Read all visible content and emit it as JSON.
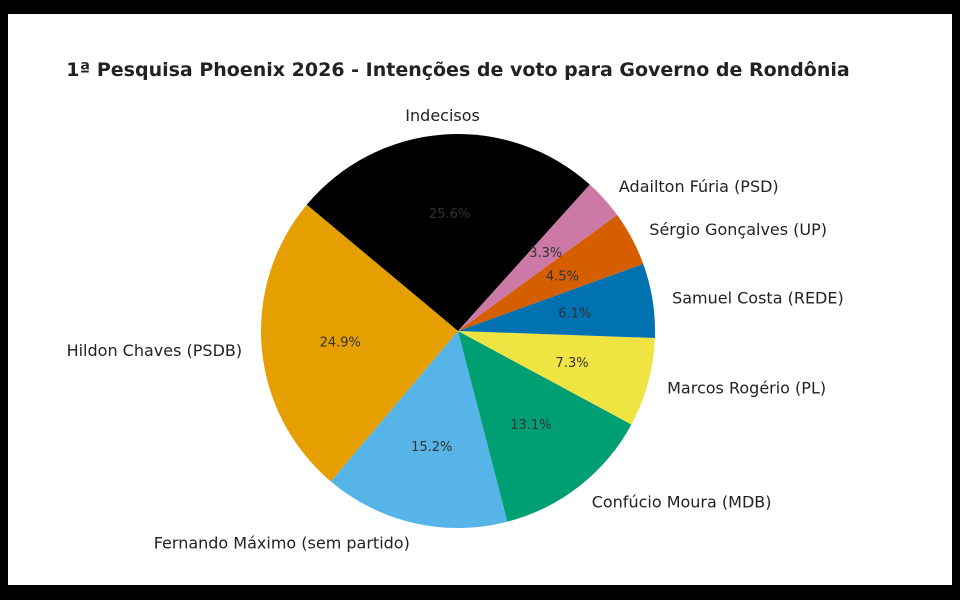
{
  "chart_data": {
    "type": "pie",
    "title": "1ª Pesquisa Phoenix 2026 - Intenções de voto para Governo de Rondônia",
    "start_angle_deg": 48,
    "direction": "counterclockwise",
    "slices": [
      {
        "label": "Indecisos",
        "value": 25.6,
        "pct_label": "25.6%",
        "color": "#000000"
      },
      {
        "label": "Hildon Chaves (PSDB)",
        "value": 24.9,
        "pct_label": "24.9%",
        "color": "#E69F00"
      },
      {
        "label": "Fernando Máximo (sem partido)",
        "value": 15.2,
        "pct_label": "15.2%",
        "color": "#56B4E9"
      },
      {
        "label": "Confúcio Moura (MDB)",
        "value": 13.1,
        "pct_label": "13.1%",
        "color": "#009E73"
      },
      {
        "label": "Marcos Rogério (PL)",
        "value": 7.3,
        "pct_label": "7.3%",
        "color": "#F0E442"
      },
      {
        "label": "Samuel Costa (REDE)",
        "value": 6.1,
        "pct_label": "6.1%",
        "color": "#0072B2"
      },
      {
        "label": "Sérgio Gonçalves (UP)",
        "value": 4.5,
        "pct_label": "4.5%",
        "color": "#D55E00"
      },
      {
        "label": "Adailton Fúria (PSD)",
        "value": 3.3,
        "pct_label": "3.3%",
        "color": "#CC79A7"
      }
    ]
  }
}
